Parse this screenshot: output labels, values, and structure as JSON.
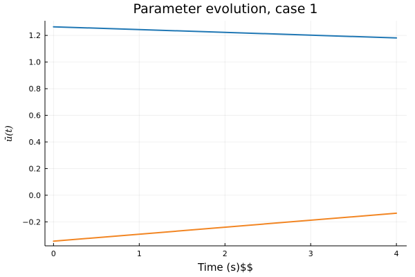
{
  "chart_data": {
    "type": "line",
    "title": "Parameter evolution, case 1",
    "xlabel": "Time (s)$$",
    "ylabel": "ū(t)",
    "xlim": [
      -0.1,
      4.12
    ],
    "ylim": [
      -0.38,
      1.31
    ],
    "xticks": [
      0,
      1,
      2,
      3,
      4
    ],
    "xtick_labels": [
      "0",
      "1",
      "2",
      "3",
      "4"
    ],
    "yticks": [
      -0.2,
      0.0,
      0.2,
      0.4,
      0.6,
      0.8,
      1.0,
      1.2
    ],
    "ytick_labels": [
      "−0.2",
      "0.0",
      "0.2",
      "0.4",
      "0.6",
      "0.8",
      "1.0",
      "1.2"
    ],
    "grid": true,
    "legend": "none",
    "series": [
      {
        "color": "#1f77b4",
        "x": [
          0,
          4
        ],
        "y": [
          1.265,
          1.181
        ]
      },
      {
        "color": "#f28522",
        "x": [
          0,
          4
        ],
        "y": [
          -0.345,
          -0.135
        ]
      }
    ]
  }
}
